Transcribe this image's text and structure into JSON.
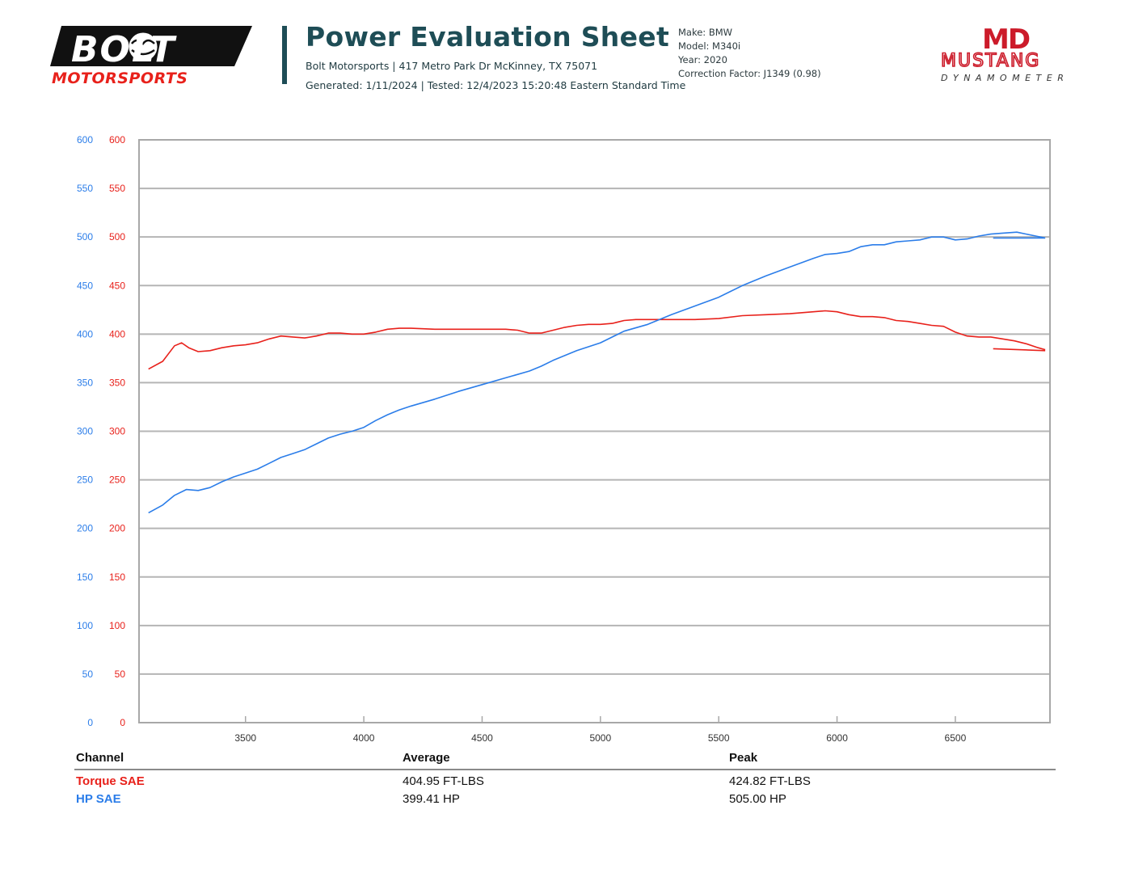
{
  "header": {
    "logo_left": {
      "line1": "BOLT",
      "line2": "MOTORSPORTS"
    },
    "title": "Power Evaluation Sheet",
    "address": "Bolt Motorsports | 417 Metro Park Dr McKinney, TX 75071",
    "generated": "Generated: 1/11/2024 | Tested: 12/4/2023 15:20:48 Eastern Standard Time",
    "vehicle": {
      "make": "Make: BMW",
      "model": "Model: M340i",
      "year": "Year: 2020",
      "correction": "Correction Factor: J1349 (0.98)"
    },
    "logo_right": {
      "mark": "MD",
      "word": "MUSTANG",
      "sub": "DYNAMOMETER"
    }
  },
  "colors": {
    "torque": "#e8211b",
    "hp": "#2b7de9",
    "brand_teal": "#1e4d56",
    "grid": "#b5b5b5"
  },
  "chart_data": {
    "type": "line",
    "xlim": [
      3050,
      6900
    ],
    "ylim": [
      0,
      600
    ],
    "x_ticks": [
      3500,
      4000,
      4500,
      5000,
      5500,
      6000,
      6500
    ],
    "y_ticks": [
      0,
      50,
      100,
      150,
      200,
      250,
      300,
      350,
      400,
      450,
      500,
      550,
      600
    ],
    "grid": true,
    "series": [
      {
        "name": "Torque SAE",
        "color": "#e8211b",
        "points": [
          [
            3090,
            364
          ],
          [
            3150,
            372
          ],
          [
            3200,
            388
          ],
          [
            3230,
            391
          ],
          [
            3260,
            386
          ],
          [
            3300,
            382
          ],
          [
            3350,
            383
          ],
          [
            3400,
            386
          ],
          [
            3450,
            388
          ],
          [
            3500,
            389
          ],
          [
            3550,
            391
          ],
          [
            3600,
            395
          ],
          [
            3650,
            398
          ],
          [
            3700,
            397
          ],
          [
            3750,
            396
          ],
          [
            3800,
            398
          ],
          [
            3850,
            401
          ],
          [
            3900,
            401
          ],
          [
            3950,
            400
          ],
          [
            4000,
            400
          ],
          [
            4050,
            402
          ],
          [
            4100,
            405
          ],
          [
            4150,
            406
          ],
          [
            4200,
            406
          ],
          [
            4300,
            405
          ],
          [
            4400,
            405
          ],
          [
            4500,
            405
          ],
          [
            4600,
            405
          ],
          [
            4650,
            404
          ],
          [
            4700,
            401
          ],
          [
            4750,
            401
          ],
          [
            4800,
            404
          ],
          [
            4850,
            407
          ],
          [
            4900,
            409
          ],
          [
            4950,
            410
          ],
          [
            5000,
            410
          ],
          [
            5050,
            411
          ],
          [
            5100,
            414
          ],
          [
            5150,
            415
          ],
          [
            5200,
            415
          ],
          [
            5300,
            415
          ],
          [
            5400,
            415
          ],
          [
            5500,
            416
          ],
          [
            5600,
            419
          ],
          [
            5700,
            420
          ],
          [
            5800,
            421
          ],
          [
            5900,
            423
          ],
          [
            5950,
            424
          ],
          [
            6000,
            423
          ],
          [
            6050,
            420
          ],
          [
            6100,
            418
          ],
          [
            6150,
            418
          ],
          [
            6200,
            417
          ],
          [
            6250,
            414
          ],
          [
            6300,
            413
          ],
          [
            6350,
            411
          ],
          [
            6400,
            409
          ],
          [
            6450,
            408
          ],
          [
            6500,
            402
          ],
          [
            6550,
            398
          ],
          [
            6600,
            397
          ],
          [
            6650,
            397
          ],
          [
            6700,
            395
          ],
          [
            6750,
            393
          ],
          [
            6800,
            390
          ],
          [
            6850,
            386
          ],
          [
            6880,
            384
          ]
        ],
        "tail": [
          [
            6880,
            383
          ],
          [
            6660,
            385
          ]
        ]
      },
      {
        "name": "HP SAE",
        "color": "#2b7de9",
        "points": [
          [
            3090,
            216
          ],
          [
            3150,
            224
          ],
          [
            3200,
            234
          ],
          [
            3250,
            240
          ],
          [
            3300,
            239
          ],
          [
            3350,
            242
          ],
          [
            3400,
            248
          ],
          [
            3450,
            253
          ],
          [
            3500,
            257
          ],
          [
            3550,
            261
          ],
          [
            3600,
            267
          ],
          [
            3650,
            273
          ],
          [
            3700,
            277
          ],
          [
            3750,
            281
          ],
          [
            3800,
            287
          ],
          [
            3850,
            293
          ],
          [
            3900,
            297
          ],
          [
            3950,
            300
          ],
          [
            4000,
            304
          ],
          [
            4050,
            311
          ],
          [
            4100,
            317
          ],
          [
            4150,
            322
          ],
          [
            4200,
            326
          ],
          [
            4300,
            333
          ],
          [
            4400,
            341
          ],
          [
            4500,
            348
          ],
          [
            4600,
            355
          ],
          [
            4700,
            362
          ],
          [
            4750,
            367
          ],
          [
            4800,
            373
          ],
          [
            4850,
            378
          ],
          [
            4900,
            383
          ],
          [
            5000,
            391
          ],
          [
            5050,
            397
          ],
          [
            5100,
            403
          ],
          [
            5200,
            410
          ],
          [
            5300,
            420
          ],
          [
            5400,
            429
          ],
          [
            5500,
            438
          ],
          [
            5550,
            444
          ],
          [
            5600,
            450
          ],
          [
            5700,
            460
          ],
          [
            5800,
            469
          ],
          [
            5900,
            478
          ],
          [
            5950,
            482
          ],
          [
            6000,
            483
          ],
          [
            6050,
            485
          ],
          [
            6100,
            490
          ],
          [
            6150,
            492
          ],
          [
            6200,
            492
          ],
          [
            6250,
            495
          ],
          [
            6300,
            496
          ],
          [
            6350,
            497
          ],
          [
            6400,
            500
          ],
          [
            6450,
            500
          ],
          [
            6500,
            497
          ],
          [
            6550,
            498
          ],
          [
            6600,
            501
          ],
          [
            6650,
            503
          ],
          [
            6700,
            504
          ],
          [
            6760,
            505
          ],
          [
            6800,
            503
          ],
          [
            6840,
            501
          ],
          [
            6880,
            499
          ]
        ],
        "tail": [
          [
            6880,
            499
          ],
          [
            6660,
            499
          ]
        ]
      }
    ]
  },
  "table": {
    "headers": {
      "channel": "Channel",
      "average": "Average",
      "peak": "Peak"
    },
    "rows": [
      {
        "channel": "Torque SAE",
        "average": "404.95 FT-LBS",
        "peak": "424.82 FT-LBS"
      },
      {
        "channel": "HP SAE",
        "average": "399.41 HP",
        "peak": "505.00 HP"
      }
    ]
  }
}
